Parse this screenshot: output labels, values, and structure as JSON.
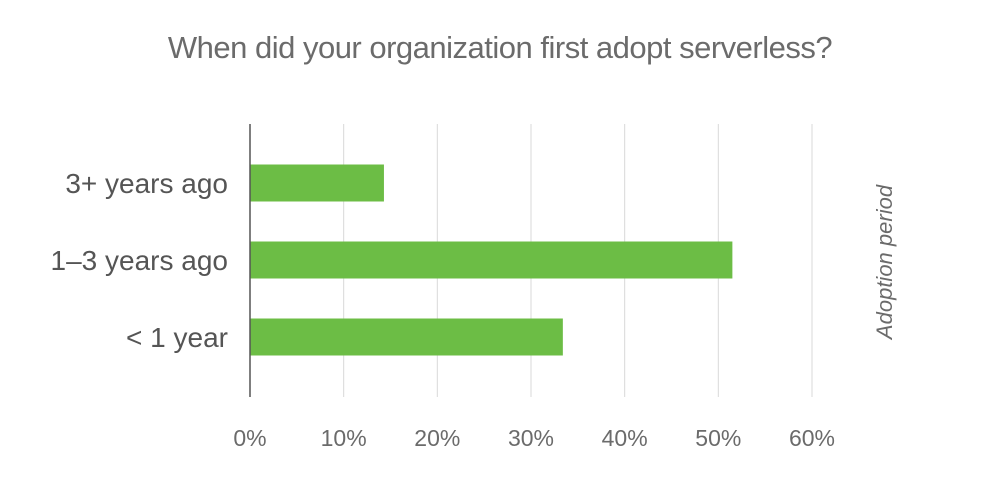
{
  "chart_data": {
    "type": "bar",
    "orientation": "horizontal",
    "title": "When did your organization first adopt serverless?",
    "categories": [
      "3+ years ago",
      "1–3 years ago",
      "< 1 year"
    ],
    "values": [
      14.3,
      51.5,
      33.4
    ],
    "xlim": [
      0,
      60
    ],
    "xticks": [
      "0%",
      "10%",
      "20%",
      "30%",
      "40%",
      "50%",
      "60%"
    ],
    "xtick_values": [
      0,
      10,
      20,
      30,
      40,
      50,
      60
    ],
    "side_label": "Adoption period",
    "grid": true,
    "bar_color": "#6cbd45",
    "grid_color": "#d9d9d9",
    "axis_color": "#555555"
  }
}
